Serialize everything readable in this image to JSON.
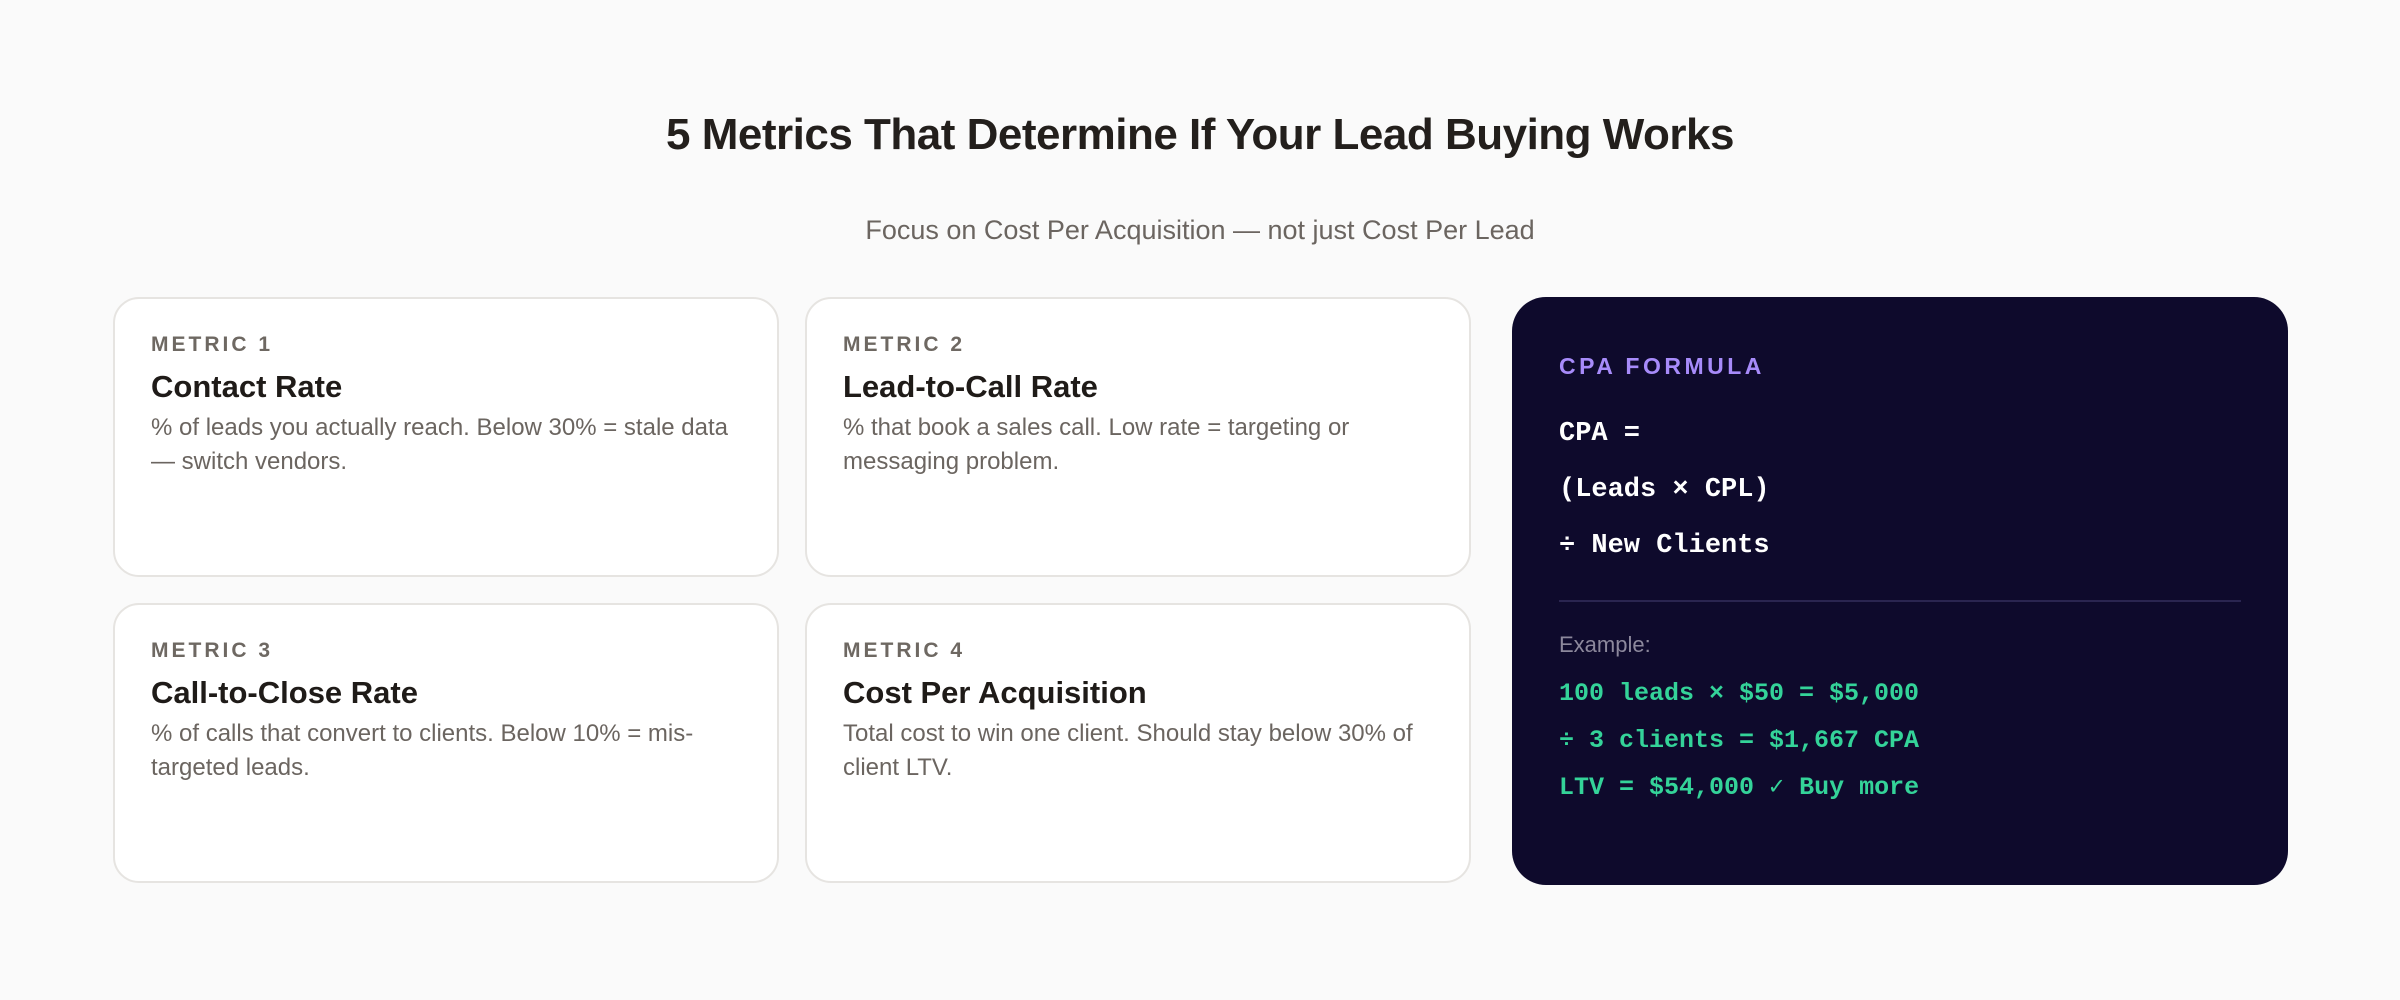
{
  "header": {
    "title": "5 Metrics That Determine If Your Lead Buying Works",
    "subtitle": "Focus on Cost Per Acquisition — not just Cost Per Lead"
  },
  "metrics": [
    {
      "label": "METRIC 1",
      "title": "Contact Rate",
      "desc": "% of leads you actually reach. Below 30% = stale data — switch vendors."
    },
    {
      "label": "METRIC 2",
      "title": "Lead-to-Call Rate",
      "desc": "% that book a sales call. Low rate = targeting or messaging problem."
    },
    {
      "label": "METRIC 3",
      "title": "Call-to-Close Rate",
      "desc": "% of calls that convert to clients. Below 10% = mis-targeted leads."
    },
    {
      "label": "METRIC 4",
      "title": "Cost Per Acquisition",
      "desc": "Total cost to win one client. Should stay below 30% of client LTV."
    }
  ],
  "formula": {
    "label": "CPA FORMULA",
    "lines": [
      "CPA =",
      "(Leads × CPL)",
      "÷ New Clients"
    ],
    "example_label": "Example:",
    "example_lines": [
      "100 leads × $50 = $5,000",
      "÷ 3 clients = $1,667 CPA",
      "LTV = $54,000 ✓ Buy more"
    ]
  },
  "colors": {
    "accent": "#a78bfa",
    "positive": "#34d399",
    "dark_bg": "#0e0a2c",
    "page_bg": "#fafafa"
  }
}
